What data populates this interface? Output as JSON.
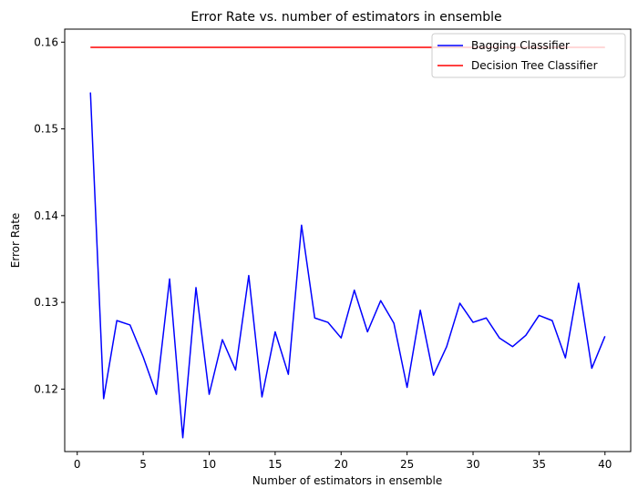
{
  "chart_data": {
    "type": "line",
    "title": "Error Rate vs. number of estimators in ensemble",
    "xlabel": "Number of estimators in ensemble",
    "ylabel": "Error Rate",
    "xlim": [
      -0.95,
      41.95
    ],
    "ylim": [
      0.1128,
      0.1615
    ],
    "xticks": [
      0,
      5,
      10,
      15,
      20,
      25,
      30,
      35,
      40
    ],
    "yticks": [
      0.12,
      0.13,
      0.14,
      0.15,
      0.16
    ],
    "ytick_labels": [
      "0.12",
      "0.13",
      "0.14",
      "0.15",
      "0.16"
    ],
    "grid": false,
    "legend_position": "top-right",
    "series": [
      {
        "name": "Bagging Classifier",
        "color": "#0000ff",
        "x": [
          1,
          2,
          3,
          4,
          5,
          6,
          7,
          8,
          9,
          10,
          11,
          12,
          13,
          14,
          15,
          16,
          17,
          18,
          19,
          20,
          21,
          22,
          23,
          24,
          25,
          26,
          27,
          28,
          29,
          30,
          31,
          32,
          33,
          34,
          35,
          36,
          37,
          38,
          39,
          40
        ],
        "values": [
          0.1542,
          0.1189,
          0.1279,
          0.1274,
          0.1237,
          0.1194,
          0.1327,
          0.1144,
          0.1317,
          0.1194,
          0.1257,
          0.1222,
          0.1331,
          0.1191,
          0.1266,
          0.1217,
          0.1389,
          0.1282,
          0.1277,
          0.1259,
          0.1314,
          0.1266,
          0.1302,
          0.1276,
          0.1202,
          0.1291,
          0.1216,
          0.1249,
          0.1299,
          0.1277,
          0.1282,
          0.1259,
          0.1249,
          0.1262,
          0.1285,
          0.1279,
          0.1236,
          0.1322,
          0.1224,
          0.1261
        ]
      },
      {
        "name": "Decision Tree Classifier",
        "color": "#ff0000",
        "x": [
          1,
          2,
          3,
          4,
          5,
          6,
          7,
          8,
          9,
          10,
          11,
          12,
          13,
          14,
          15,
          16,
          17,
          18,
          19,
          20,
          21,
          22,
          23,
          24,
          25,
          26,
          27,
          28,
          29,
          30,
          31,
          32,
          33,
          34,
          35,
          36,
          37,
          38,
          39,
          40
        ],
        "values": [
          0.1594,
          0.1594,
          0.1594,
          0.1594,
          0.1594,
          0.1594,
          0.1594,
          0.1594,
          0.1594,
          0.1594,
          0.1594,
          0.1594,
          0.1594,
          0.1594,
          0.1594,
          0.1594,
          0.1594,
          0.1594,
          0.1594,
          0.1594,
          0.1594,
          0.1594,
          0.1594,
          0.1594,
          0.1594,
          0.1594,
          0.1594,
          0.1594,
          0.1594,
          0.1594,
          0.1594,
          0.1594,
          0.1594,
          0.1594,
          0.1594,
          0.1594,
          0.1594,
          0.1594,
          0.1594,
          0.1594
        ]
      }
    ]
  }
}
